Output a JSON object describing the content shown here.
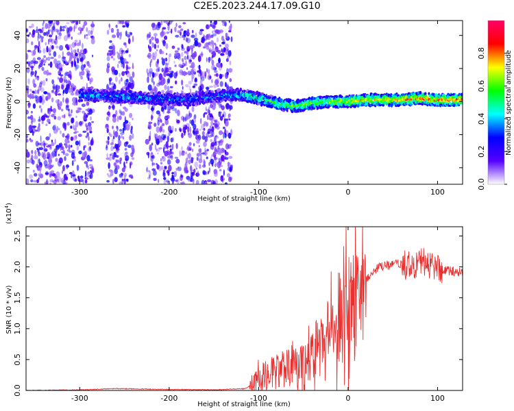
{
  "title": "C2E5.2023.244.17.09.G10",
  "chart_data": [
    {
      "type": "heatmap",
      "xlabel": "Height of straight line (km)",
      "ylabel": "Frequency (Hz)",
      "xlim": [
        -360,
        128
      ],
      "ylim": [
        -50,
        49
      ],
      "xticks": [
        -300,
        -200,
        -100,
        0,
        100
      ],
      "yticks": [
        -40,
        -20,
        0,
        20,
        40
      ],
      "colorbar": {
        "label": "Normalized spectral amplitude",
        "range": [
          0,
          1
        ],
        "ticks": [
          "0.0",
          "0.2",
          "0.4",
          "0.6",
          "0.8"
        ],
        "tick_values": [
          0,
          0.2,
          0.4,
          0.6,
          0.8
        ],
        "colormap": [
          "#ffffff",
          "#5500ff",
          "#0000ff",
          "#00ffff",
          "#00ff00",
          "#ffff00",
          "#ff0000",
          "#ff0066"
        ]
      },
      "noise_regions": [
        [
          -360,
          -285
        ],
        [
          -270,
          -240
        ],
        [
          -225,
          -130
        ]
      ],
      "signal_trend": {
        "x": [
          -300,
          -260,
          -220,
          -180,
          -140,
          -120,
          -100,
          -80,
          -60,
          -40,
          -20,
          0,
          20,
          40,
          60,
          80,
          100,
          128
        ],
        "freq": [
          4,
          3,
          2,
          1,
          4,
          4,
          2,
          -1,
          -3,
          -1,
          0,
          0,
          1,
          1,
          1,
          2,
          1,
          1
        ],
        "amplitude": [
          0.35,
          0.35,
          0.35,
          0.3,
          0.35,
          0.45,
          0.5,
          0.55,
          0.6,
          0.6,
          0.65,
          0.7,
          0.72,
          0.74,
          0.76,
          0.78,
          0.8,
          0.85
        ]
      }
    },
    {
      "type": "line",
      "xlabel": "Height of straight line (km)",
      "ylabel": "SNR (10 * v/v)",
      "yscale_label": "(x10",
      "yscale_exp": "4",
      "yscale_close": ")",
      "xlim": [
        -360,
        128
      ],
      "ylim": [
        0,
        2.65
      ],
      "xticks": [
        -300,
        -200,
        -100,
        0,
        100
      ],
      "yticks": [
        "0.0",
        "0.5",
        "1.0",
        "1.5",
        "2.0",
        "2.5"
      ],
      "ytick_values": [
        0,
        0.5,
        1.0,
        1.5,
        2.0,
        2.5
      ],
      "color": "#e83030",
      "series": [
        {
          "x": [
            -360,
            -300,
            -260,
            -220,
            -150,
            -115,
            -105,
            -90,
            -70,
            -50,
            -40,
            -30,
            -20,
            -10,
            0,
            10,
            20,
            30,
            40,
            50,
            60,
            70,
            80,
            90,
            100,
            110,
            128
          ],
          "y": [
            0.0,
            0.01,
            0.03,
            0.02,
            0.01,
            0.03,
            0.12,
            0.25,
            0.35,
            0.42,
            0.55,
            0.8,
            1.05,
            1.2,
            1.35,
            1.55,
            1.8,
            1.95,
            2.02,
            2.03,
            2.05,
            2.0,
            2.08,
            2.05,
            1.98,
            1.95,
            1.9
          ]
        }
      ]
    }
  ]
}
